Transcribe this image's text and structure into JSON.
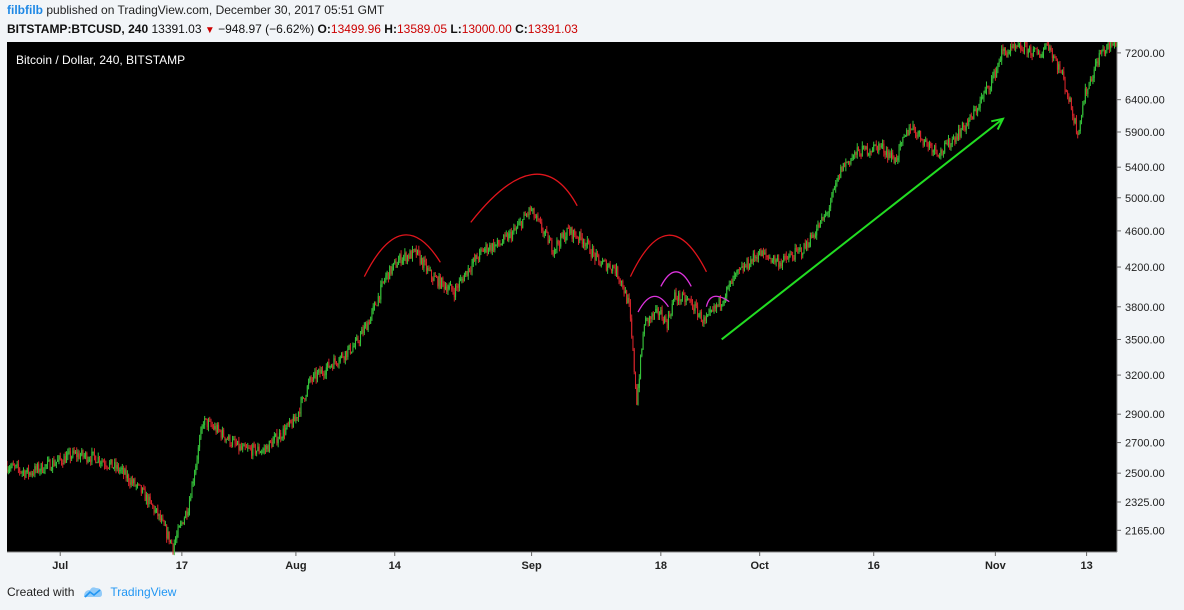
{
  "header": {
    "author": "filbfilb",
    "published_text": "published on TradingView.com, December 30, 2017 05:51 GMT"
  },
  "ohlc": {
    "symbol": "BITSTAMP:BTCUSD, 240",
    "last": "13391.03",
    "change": "−948.97 (−6.62%)",
    "o_label": "O:",
    "o": "13499.96",
    "h_label": "H:",
    "h": "13589.05",
    "l_label": "L:",
    "l": "13000.00",
    "c_label": "C:",
    "c": "13391.03"
  },
  "footer": {
    "created_with": "Created with",
    "brand": "TradingView"
  },
  "colors": {
    "up": "#35c23a",
    "down": "#d6252b",
    "background": "#000000",
    "axis_bg": "#f2f5f8",
    "arc_red": "#e0151c",
    "arc_magenta": "#dd33dd",
    "trend_arrow": "#22dd22",
    "brand_blue": "#2196f3"
  },
  "chart_data": {
    "type": "candlestick",
    "title": "Bitcoin / Dollar, 240, BITSTAMP",
    "scale": "log",
    "ylim": [
      2050,
      7400
    ],
    "xlim": [
      "2017-06-24",
      "2017-11-17"
    ],
    "y_ticks": [
      "7200.00",
      "6400.00",
      "5900.00",
      "5400.00",
      "5000.00",
      "4600.00",
      "4200.00",
      "3800.00",
      "3500.00",
      "3200.00",
      "2900.00",
      "2700.00",
      "2500.00",
      "2325.00",
      "2165.00"
    ],
    "x_ticks": [
      {
        "date": "2017-07-01",
        "label": "Jul"
      },
      {
        "date": "2017-07-17",
        "label": "17"
      },
      {
        "date": "2017-08-01",
        "label": "Aug"
      },
      {
        "date": "2017-08-14",
        "label": "14"
      },
      {
        "date": "2017-09-01",
        "label": "Sep"
      },
      {
        "date": "2017-09-18",
        "label": "18"
      },
      {
        "date": "2017-10-01",
        "label": "Oct"
      },
      {
        "date": "2017-10-16",
        "label": "16"
      },
      {
        "date": "2017-11-01",
        "label": "Nov"
      },
      {
        "date": "2017-11-13",
        "label": "13"
      }
    ],
    "price_path": [
      [
        "2017-06-24",
        2550
      ],
      [
        "2017-06-27",
        2500
      ],
      [
        "2017-06-30",
        2560
      ],
      [
        "2017-07-03",
        2620
      ],
      [
        "2017-07-06",
        2600
      ],
      [
        "2017-07-09",
        2520
      ],
      [
        "2017-07-12",
        2380
      ],
      [
        "2017-07-14",
        2250
      ],
      [
        "2017-07-16",
        2080
      ],
      [
        "2017-07-18",
        2300
      ],
      [
        "2017-07-20",
        2850
      ],
      [
        "2017-07-22",
        2780
      ],
      [
        "2017-07-25",
        2650
      ],
      [
        "2017-07-28",
        2650
      ],
      [
        "2017-07-30",
        2750
      ],
      [
        "2017-08-01",
        2850
      ],
      [
        "2017-08-03",
        3150
      ],
      [
        "2017-08-05",
        3250
      ],
      [
        "2017-08-07",
        3350
      ],
      [
        "2017-08-09",
        3450
      ],
      [
        "2017-08-11",
        3700
      ],
      [
        "2017-08-13",
        4100
      ],
      [
        "2017-08-15",
        4300
      ],
      [
        "2017-08-17",
        4350
      ],
      [
        "2017-08-19",
        4100
      ],
      [
        "2017-08-22",
        3950
      ],
      [
        "2017-08-24",
        4200
      ],
      [
        "2017-08-26",
        4400
      ],
      [
        "2017-08-28",
        4450
      ],
      [
        "2017-08-30",
        4600
      ],
      [
        "2017-09-01",
        4850
      ],
      [
        "2017-09-02",
        4700
      ],
      [
        "2017-09-04",
        4400
      ],
      [
        "2017-09-06",
        4600
      ],
      [
        "2017-09-08",
        4500
      ],
      [
        "2017-09-10",
        4250
      ],
      [
        "2017-09-12",
        4200
      ],
      [
        "2017-09-13",
        4050
      ],
      [
        "2017-09-14",
        3800
      ],
      [
        "2017-09-15",
        3000
      ],
      [
        "2017-09-16",
        3650
      ],
      [
        "2017-09-18",
        3750
      ],
      [
        "2017-09-19",
        3650
      ],
      [
        "2017-09-20",
        3900
      ],
      [
        "2017-09-22",
        3850
      ],
      [
        "2017-09-24",
        3650
      ],
      [
        "2017-09-26",
        3850
      ],
      [
        "2017-09-28",
        4100
      ],
      [
        "2017-10-01",
        4350
      ],
      [
        "2017-10-04",
        4250
      ],
      [
        "2017-10-07",
        4400
      ],
      [
        "2017-10-10",
        4800
      ],
      [
        "2017-10-12",
        5400
      ],
      [
        "2017-10-14",
        5600
      ],
      [
        "2017-10-17",
        5700
      ],
      [
        "2017-10-19",
        5500
      ],
      [
        "2017-10-21",
        6000
      ],
      [
        "2017-10-23",
        5750
      ],
      [
        "2017-10-25",
        5600
      ],
      [
        "2017-10-27",
        5850
      ],
      [
        "2017-10-29",
        6100
      ],
      [
        "2017-11-01",
        6800
      ],
      [
        "2017-11-02",
        7200
      ],
      [
        "2017-11-05",
        7300
      ],
      [
        "2017-11-07",
        7150
      ],
      [
        "2017-11-08",
        7400
      ],
      [
        "2017-11-10",
        6800
      ],
      [
        "2017-11-12",
        5900
      ],
      [
        "2017-11-13",
        6500
      ],
      [
        "2017-11-15",
        7200
      ],
      [
        "2017-11-17",
        7400
      ]
    ],
    "annotations": [
      {
        "type": "arc",
        "color": "red",
        "from": [
          "2017-08-10",
          4100
        ],
        "peak": [
          "2017-08-15",
          4550
        ],
        "to": [
          "2017-08-20",
          4250
        ]
      },
      {
        "type": "arc",
        "color": "red",
        "from": [
          "2017-08-24",
          4700
        ],
        "peak": [
          "2017-09-01",
          5300
        ],
        "to": [
          "2017-09-07",
          4900
        ]
      },
      {
        "type": "arc",
        "color": "red",
        "from": [
          "2017-09-14",
          4100
        ],
        "peak": [
          "2017-09-19",
          4550
        ],
        "to": [
          "2017-09-24",
          4150
        ]
      },
      {
        "type": "arc",
        "color": "magenta",
        "from": [
          "2017-09-15",
          3750
        ],
        "peak": [
          "2017-09-17",
          3900
        ],
        "to": [
          "2017-09-19",
          3800
        ]
      },
      {
        "type": "arc",
        "color": "magenta",
        "from": [
          "2017-09-18",
          4000
        ],
        "peak": [
          "2017-09-20",
          4150
        ],
        "to": [
          "2017-09-22",
          4000
        ]
      },
      {
        "type": "arc",
        "color": "magenta",
        "from": [
          "2017-09-24",
          3800
        ],
        "peak": [
          "2017-09-25",
          3900
        ],
        "to": [
          "2017-09-27",
          3850
        ]
      },
      {
        "type": "arrow",
        "color": "green",
        "from": [
          "2017-09-26",
          3500
        ],
        "to": [
          "2017-11-02",
          6100
        ]
      }
    ]
  }
}
